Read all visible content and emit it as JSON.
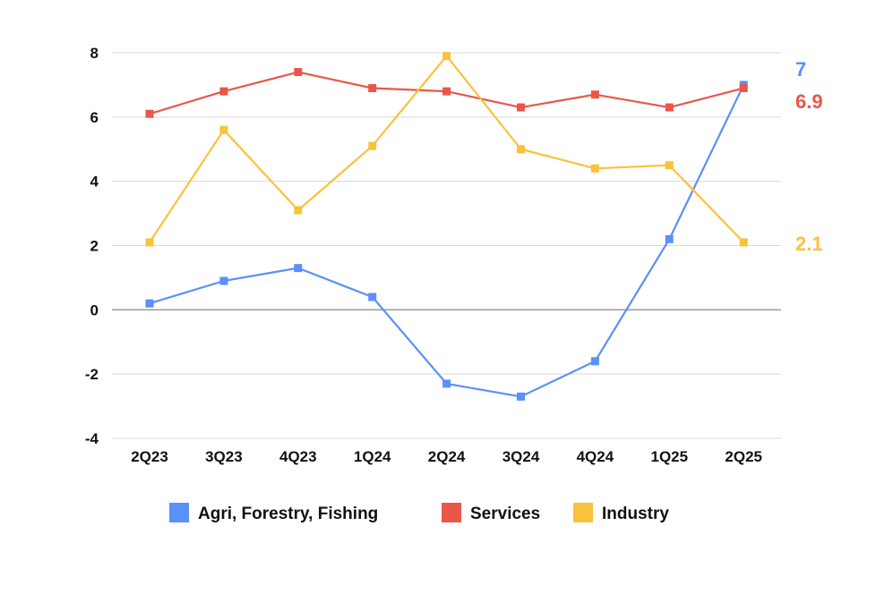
{
  "chart_data": {
    "type": "line",
    "title": "",
    "xlabel": "",
    "ylabel": "",
    "categories": [
      "2Q23",
      "3Q23",
      "4Q23",
      "1Q24",
      "2Q24",
      "3Q24",
      "4Q24",
      "1Q25",
      "2Q25"
    ],
    "ylim": [
      -4,
      8
    ],
    "yticks": [
      -4,
      -2,
      0,
      2,
      4,
      6,
      8
    ],
    "ytick_labels": [
      "-4",
      "-2",
      "0",
      "2",
      "4",
      "6",
      "8"
    ],
    "grid": true,
    "legend_position": "bottom",
    "series": [
      {
        "name": "Agri, Forestry, Fishing",
        "color": "#5B8FF9",
        "values": [
          0.2,
          0.9,
          1.3,
          0.4,
          -2.3,
          -2.7,
          -1.6,
          2.2,
          7.0
        ],
        "end_label": "7"
      },
      {
        "name": "Services",
        "color": "#E8574A",
        "values": [
          6.1,
          6.8,
          7.4,
          6.9,
          6.8,
          6.3,
          6.7,
          6.3,
          6.9
        ],
        "end_label": "6.9"
      },
      {
        "name": "Industry",
        "color": "#F9C23C",
        "values": [
          2.1,
          5.6,
          3.1,
          5.1,
          7.9,
          5.0,
          4.4,
          4.5,
          2.1
        ],
        "end_label": "2.1"
      }
    ]
  }
}
